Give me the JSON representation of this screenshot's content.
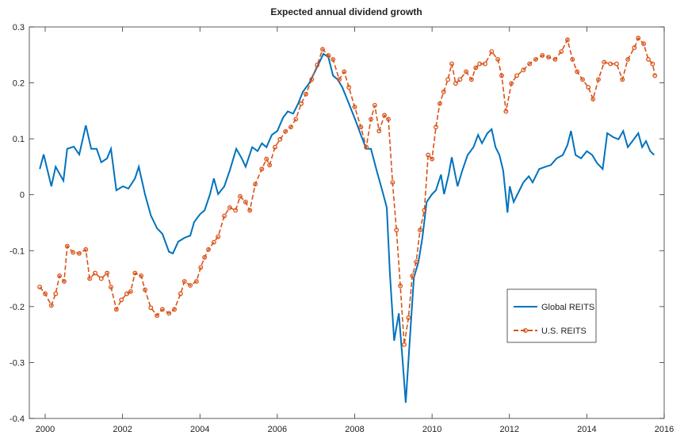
{
  "chart_data": {
    "type": "line",
    "title": "Expected annual dividend growth",
    "xlim": [
      1999.59,
      2016
    ],
    "xticks": [
      2000,
      2002,
      2004,
      2006,
      2008,
      2010,
      2012,
      2014,
      2016
    ],
    "ylim": [
      -0.4,
      0.3
    ],
    "yticks": [
      -0.4,
      -0.3,
      -0.2,
      -0.1,
      0,
      0.1,
      0.2,
      0.3
    ],
    "grid": false,
    "legend": "lower right",
    "series": [
      {
        "name": "Global REITS",
        "color": "#0072bd",
        "style": "solid",
        "x": [
          1999.86,
          1999.96,
          2000.16,
          2000.27,
          2000.47,
          2000.57,
          2000.74,
          2000.88,
          2001.05,
          2001.19,
          2001.33,
          2001.45,
          2001.6,
          2001.7,
          2001.84,
          2002.01,
          2002.15,
          2002.32,
          2002.42,
          2002.58,
          2002.73,
          2002.89,
          2003.03,
          2003.2,
          2003.3,
          2003.44,
          2003.6,
          2003.75,
          2003.85,
          2004.0,
          2004.12,
          2004.26,
          2004.36,
          2004.47,
          2004.63,
          2004.77,
          2004.94,
          2005.08,
          2005.18,
          2005.35,
          2005.49,
          2005.6,
          2005.72,
          2005.86,
          2006.0,
          2006.15,
          2006.27,
          2006.41,
          2006.54,
          2006.66,
          2006.82,
          2006.97,
          2007.09,
          2007.19,
          2007.32,
          2007.44,
          2007.56,
          2007.68,
          2007.85,
          2008.01,
          2008.16,
          2008.3,
          2008.42,
          2008.57,
          2008.71,
          2008.83,
          2008.91,
          2009.02,
          2009.14,
          2009.24,
          2009.32,
          2009.43,
          2009.53,
          2009.65,
          2009.75,
          2009.86,
          2010.0,
          2010.1,
          2010.23,
          2010.31,
          2010.43,
          2010.51,
          2010.66,
          2010.78,
          2010.92,
          2011.07,
          2011.19,
          2011.29,
          2011.43,
          2011.54,
          2011.64,
          2011.74,
          2011.84,
          2011.95,
          2012.01,
          2012.11,
          2012.21,
          2012.36,
          2012.5,
          2012.6,
          2012.77,
          2012.93,
          2013.07,
          2013.22,
          2013.38,
          2013.5,
          2013.59,
          2013.71,
          2013.85,
          2014.0,
          2014.14,
          2014.26,
          2014.41,
          2014.53,
          2014.68,
          2014.82,
          2014.94,
          2015.06,
          2015.18,
          2015.33,
          2015.43,
          2015.53,
          2015.64,
          2015.74
        ],
        "values": [
          0.046,
          0.072,
          0.015,
          0.05,
          0.025,
          0.082,
          0.086,
          0.072,
          0.124,
          0.082,
          0.082,
          0.058,
          0.065,
          0.082,
          0.008,
          0.015,
          0.011,
          0.029,
          0.05,
          0.001,
          -0.037,
          -0.06,
          -0.07,
          -0.102,
          -0.105,
          -0.084,
          -0.077,
          -0.073,
          -0.049,
          -0.035,
          -0.028,
          0.001,
          0.029,
          0.001,
          0.015,
          0.043,
          0.082,
          0.065,
          0.05,
          0.085,
          0.078,
          0.092,
          0.085,
          0.107,
          0.114,
          0.138,
          0.149,
          0.145,
          0.163,
          0.184,
          0.199,
          0.22,
          0.237,
          0.252,
          0.246,
          0.213,
          0.206,
          0.192,
          0.163,
          0.135,
          0.107,
          0.082,
          0.082,
          0.043,
          0.008,
          -0.023,
          -0.14,
          -0.261,
          -0.212,
          -0.297,
          -0.372,
          -0.254,
          -0.148,
          -0.12,
          -0.077,
          -0.013,
          0.001,
          0.008,
          0.036,
          0.001,
          0.036,
          0.067,
          0.015,
          0.043,
          0.071,
          0.085,
          0.107,
          0.092,
          0.11,
          0.117,
          0.085,
          0.071,
          0.043,
          -0.032,
          0.015,
          -0.013,
          0.001,
          0.022,
          0.033,
          0.022,
          0.046,
          0.05,
          0.053,
          0.065,
          0.071,
          0.089,
          0.114,
          0.071,
          0.065,
          0.078,
          0.071,
          0.057,
          0.046,
          0.11,
          0.103,
          0.099,
          0.114,
          0.085,
          0.096,
          0.11,
          0.085,
          0.096,
          0.078,
          0.071
        ]
      },
      {
        "name": "U.S. REITS",
        "color": "#d95319",
        "style": "dashed",
        "x": [
          1999.86,
          2000.0,
          2000.16,
          2000.27,
          2000.37,
          2000.49,
          2000.57,
          2000.72,
          2000.88,
          2001.05,
          2001.15,
          2001.29,
          2001.45,
          2001.6,
          2001.7,
          2001.84,
          2001.97,
          2002.11,
          2002.21,
          2002.32,
          2002.48,
          2002.58,
          2002.73,
          2002.89,
          2003.03,
          2003.2,
          2003.34,
          2003.5,
          2003.6,
          2003.75,
          2003.91,
          2004.02,
          2004.12,
          2004.22,
          2004.36,
          2004.47,
          2004.63,
          2004.77,
          2004.92,
          2005.04,
          2005.18,
          2005.29,
          2005.43,
          2005.6,
          2005.72,
          2005.8,
          2005.94,
          2006.07,
          2006.21,
          2006.35,
          2006.48,
          2006.62,
          2006.74,
          2006.89,
          2007.03,
          2007.17,
          2007.32,
          2007.44,
          2007.6,
          2007.73,
          2007.85,
          2008.0,
          2008.16,
          2008.3,
          2008.42,
          2008.52,
          2008.63,
          2008.77,
          2008.87,
          2008.98,
          2009.08,
          2009.18,
          2009.28,
          2009.39,
          2009.49,
          2009.59,
          2009.69,
          2009.8,
          2009.9,
          2010.0,
          2010.1,
          2010.2,
          2010.3,
          2010.41,
          2010.51,
          2010.61,
          2010.72,
          2010.88,
          2011.02,
          2011.13,
          2011.23,
          2011.37,
          2011.54,
          2011.7,
          2011.8,
          2011.91,
          2012.05,
          2012.19,
          2012.36,
          2012.52,
          2012.68,
          2012.85,
          2013.01,
          2013.18,
          2013.34,
          2013.5,
          2013.63,
          2013.75,
          2013.89,
          2014.04,
          2014.16,
          2014.3,
          2014.45,
          2014.61,
          2014.77,
          2014.92,
          2015.06,
          2015.23,
          2015.33,
          2015.47,
          2015.59,
          2015.7,
          2015.76
        ],
        "values": [
          -0.165,
          -0.177,
          -0.198,
          -0.177,
          -0.145,
          -0.155,
          -0.092,
          -0.103,
          -0.105,
          -0.098,
          -0.15,
          -0.14,
          -0.15,
          -0.14,
          -0.165,
          -0.205,
          -0.188,
          -0.177,
          -0.173,
          -0.14,
          -0.145,
          -0.17,
          -0.202,
          -0.216,
          -0.205,
          -0.212,
          -0.205,
          -0.177,
          -0.155,
          -0.162,
          -0.155,
          -0.13,
          -0.112,
          -0.098,
          -0.085,
          -0.075,
          -0.038,
          -0.023,
          -0.028,
          -0.003,
          -0.013,
          -0.028,
          0.019,
          0.046,
          0.064,
          0.053,
          0.085,
          0.099,
          0.113,
          0.121,
          0.135,
          0.163,
          0.18,
          0.206,
          0.232,
          0.26,
          0.249,
          0.242,
          0.206,
          0.22,
          0.192,
          0.157,
          0.121,
          0.085,
          0.135,
          0.16,
          0.114,
          0.142,
          0.135,
          0.022,
          -0.063,
          -0.163,
          -0.268,
          -0.22,
          -0.145,
          -0.12,
          -0.063,
          -0.028,
          0.071,
          0.064,
          0.121,
          0.163,
          0.184,
          0.206,
          0.234,
          0.199,
          0.206,
          0.22,
          0.206,
          0.227,
          0.234,
          0.234,
          0.256,
          0.242,
          0.213,
          0.149,
          0.199,
          0.213,
          0.223,
          0.234,
          0.242,
          0.249,
          0.246,
          0.242,
          0.256,
          0.277,
          0.242,
          0.22,
          0.206,
          0.192,
          0.171,
          0.206,
          0.237,
          0.234,
          0.234,
          0.206,
          0.242,
          0.263,
          0.28,
          0.27,
          0.242,
          0.234,
          0.213
        ]
      }
    ]
  }
}
